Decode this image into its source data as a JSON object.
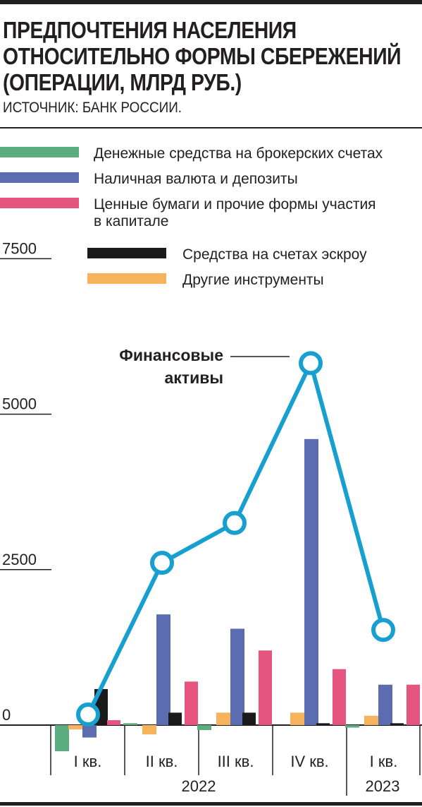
{
  "header": {
    "title_lines": [
      "ПРЕДПОЧТЕНИЯ НАСЕЛЕНИЯ",
      "ОТНОСИТЕЛЬНО ФОРМЫ СБЕРЕЖЕНИЙ",
      "(ОПЕРАЦИИ, МЛРД РУБ.)"
    ],
    "source": "ИСТОЧНИК: БАНК РОССИИ."
  },
  "colors": {
    "brokerage": "#5aad7f",
    "deposits": "#5b6db0",
    "securities": "#e5557f",
    "escrow": "#1a1a1a",
    "other": "#f7b25c",
    "line": "#179fcf"
  },
  "chart_data": {
    "type": "bar",
    "title": "ПРЕДПОЧТЕНИЯ НАСЕЛЕНИЯ ОТНОСИТЕЛЬНО ФОРМЫ СБЕРЕЖЕНИЙ (ОПЕРАЦИИ, МЛРД РУБ.)",
    "categories": [
      "I кв.",
      "II кв.",
      "III кв.",
      "IV кв.",
      "I кв."
    ],
    "year_labels": [
      "2022",
      "2023"
    ],
    "ylim": [
      -450,
      7500
    ],
    "yticks": [
      0,
      2500,
      5000,
      7500
    ],
    "grid": false,
    "legend_position": "top-left",
    "series": [
      {
        "key": "brokerage",
        "name": "Денежные средства на брокерских счетах",
        "values": [
          -420,
          30,
          -80,
          0,
          -40
        ]
      },
      {
        "key": "other",
        "name": "Другие инструменты",
        "values": [
          -70,
          -150,
          200,
          200,
          150
        ]
      },
      {
        "key": "deposits",
        "name": "Наличная валюта и депозиты",
        "values": [
          -200,
          1780,
          1550,
          4600,
          650
        ]
      },
      {
        "key": "escrow",
        "name": "Средства на счетах эскроу",
        "values": [
          580,
          200,
          200,
          30,
          30
        ]
      },
      {
        "key": "securities",
        "name": "Ценные бумаги и прочие формы участия в капитале",
        "values": [
          80,
          700,
          1200,
          900,
          650
        ]
      }
    ],
    "line": {
      "name": "Финансовые активы",
      "label_lines": [
        "Финансовые",
        "активы"
      ],
      "values": [
        170,
        2610,
        3250,
        5820,
        1530
      ]
    },
    "legend_order": [
      "brokerage",
      "deposits",
      "securities",
      "escrow",
      "other"
    ],
    "legend_lines": {
      "brokerage": [
        "Денежные средства на брокерских счетах"
      ],
      "deposits": [
        "Наличная валюта и депозиты"
      ],
      "securities": [
        "Ценные бумаги и прочие формы участия",
        "в капитале"
      ],
      "escrow": [
        "Средства на счетах эскроу"
      ],
      "other": [
        "Другие инструменты"
      ]
    }
  }
}
